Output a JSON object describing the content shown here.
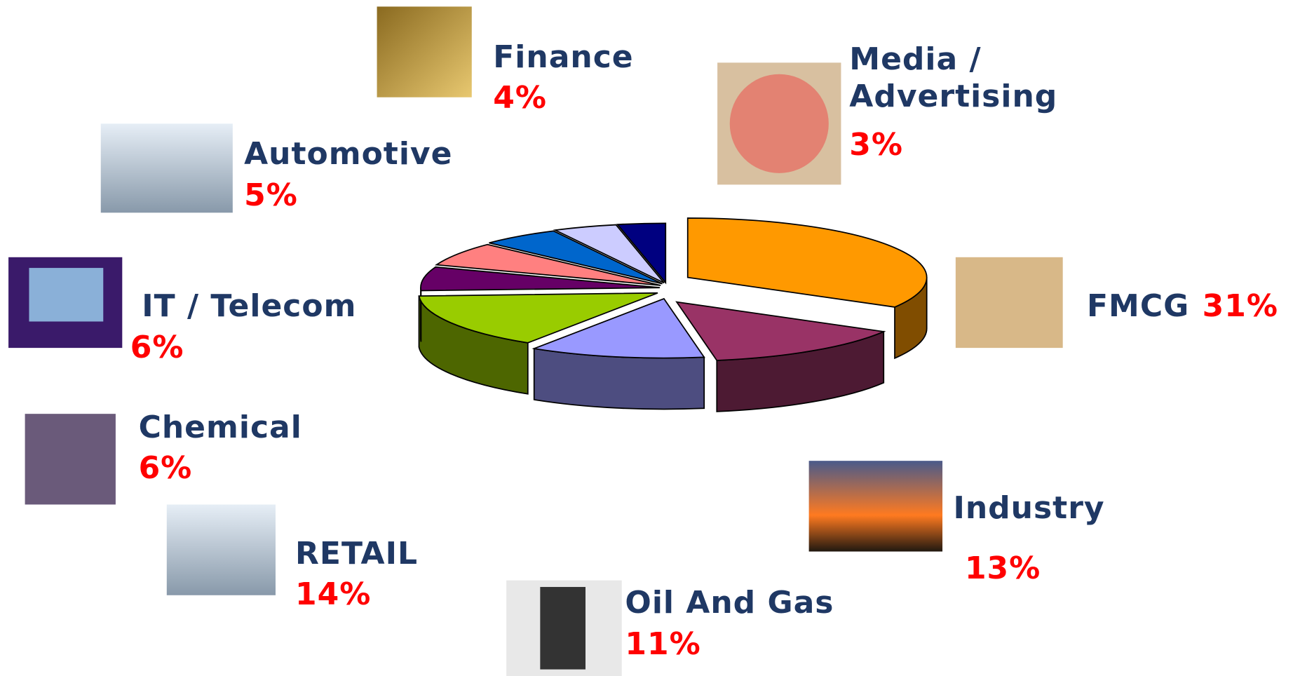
{
  "chart_data": {
    "type": "pie",
    "categories": [
      "FMCG",
      "Industry",
      "Oil And Gas",
      "RETAIL",
      "Chemical",
      "IT / Telecom",
      "Automotive",
      "Finance",
      "Media / Advertising"
    ],
    "values": [
      31,
      13,
      11,
      14,
      6,
      6,
      5,
      4,
      3
    ],
    "value_labels": [
      "31%",
      "13%",
      "11%",
      "14%",
      "6%",
      "6%",
      "5%",
      "4%",
      "3%"
    ],
    "colors": [
      "#ff9900",
      "#993366",
      "#9999ff",
      "#99cc00",
      "#660066",
      "#ff8080",
      "#0066cc",
      "#ccccff",
      "#000080"
    ]
  }
}
